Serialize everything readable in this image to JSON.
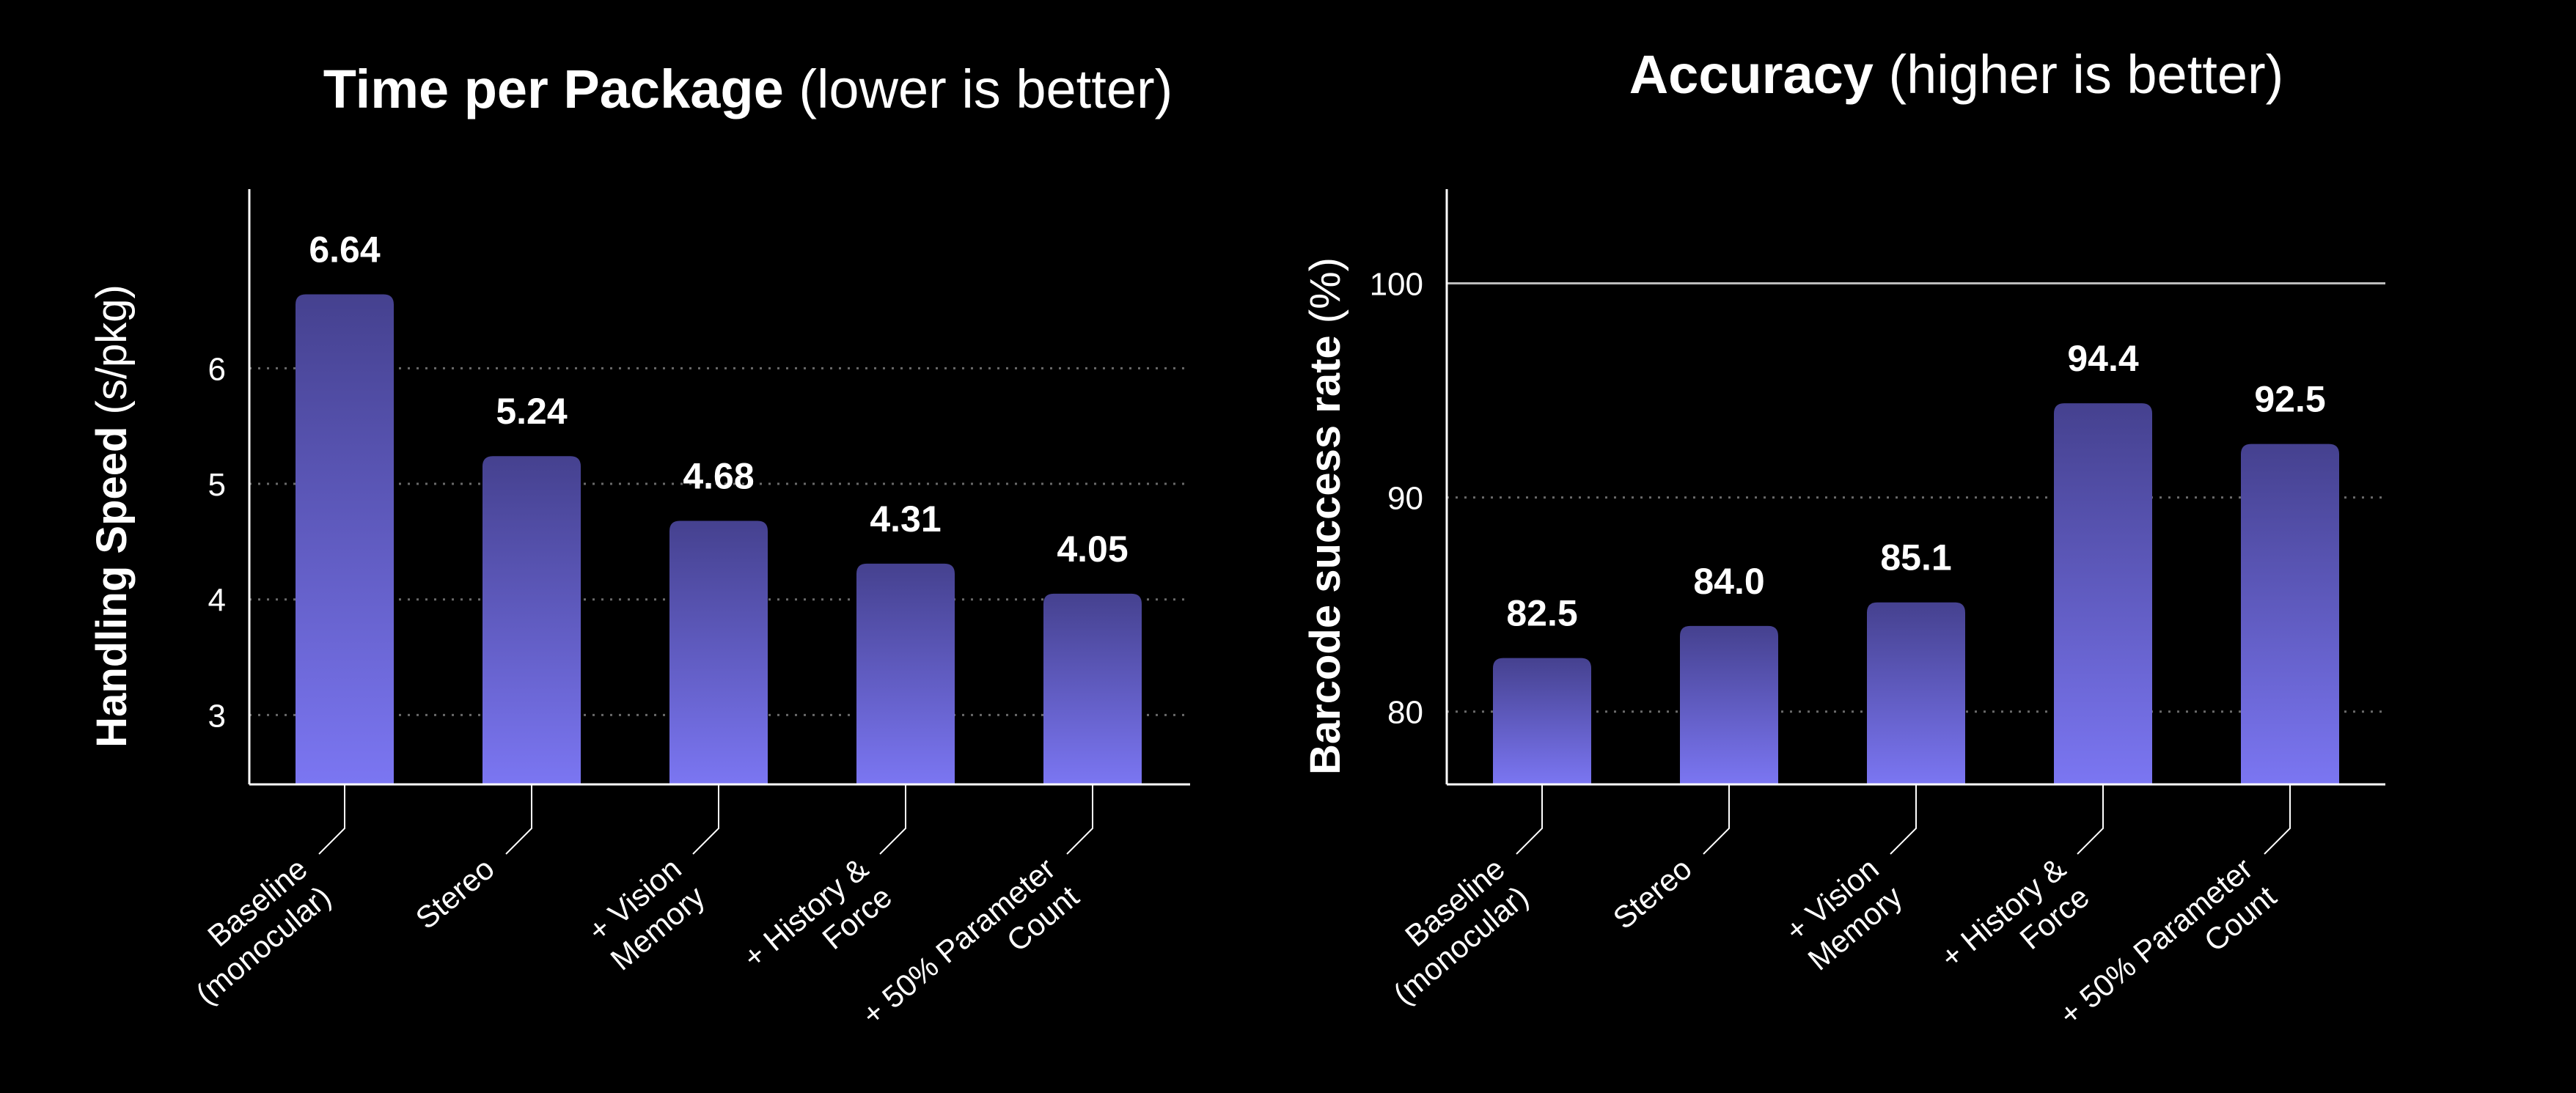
{
  "chart_data": [
    {
      "type": "bar",
      "title": "Time per Package",
      "subtitle": "(lower is better)",
      "ylabel": "Handling Speed",
      "yunit": "(s/pkg)",
      "categories": [
        [
          "Baseline",
          "(monocular)"
        ],
        [
          "Stereo"
        ],
        [
          "+ Vision",
          "Memory"
        ],
        [
          "+ History &",
          "Force"
        ],
        [
          "+ 50% Parameter",
          "Count"
        ]
      ],
      "values": [
        6.64,
        5.24,
        4.68,
        4.31,
        4.05
      ],
      "data_labels": [
        "6.64",
        "5.24",
        "4.68",
        "4.31",
        "4.05"
      ],
      "yticks": [
        "3",
        "4",
        "5",
        "6"
      ],
      "ylim": [
        2.4,
        7.55
      ],
      "grid": "dotted",
      "bar_gradient": [
        "#45418f",
        "#7b76f2"
      ]
    },
    {
      "type": "bar",
      "title": "Accuracy",
      "subtitle": "(higher is better)",
      "ylabel": "Barcode success rate",
      "yunit": "(%)",
      "categories": [
        [
          "Baseline",
          "(monocular)"
        ],
        [
          "Stereo"
        ],
        [
          "+ Vision",
          "Memory"
        ],
        [
          "+ History &",
          "Force"
        ],
        [
          "+ 50% Parameter",
          "Count"
        ]
      ],
      "values": [
        82.5,
        84.0,
        85.1,
        94.4,
        92.5
      ],
      "data_labels": [
        "82.5",
        "84.0",
        "85.1",
        "94.4",
        "92.5"
      ],
      "yticks": [
        "80",
        "90",
        "100"
      ],
      "ylim": [
        76.6,
        104.4
      ],
      "reference_line": 100,
      "grid": "dotted",
      "bar_gradient": [
        "#45418f",
        "#7b76f2"
      ]
    }
  ],
  "colors": {
    "background": "#000000",
    "text": "#ffffff",
    "axis": "#ffffff",
    "grid": "#6a6a6a",
    "bar_top": "#45418f",
    "bar_bottom": "#7b76f2"
  }
}
